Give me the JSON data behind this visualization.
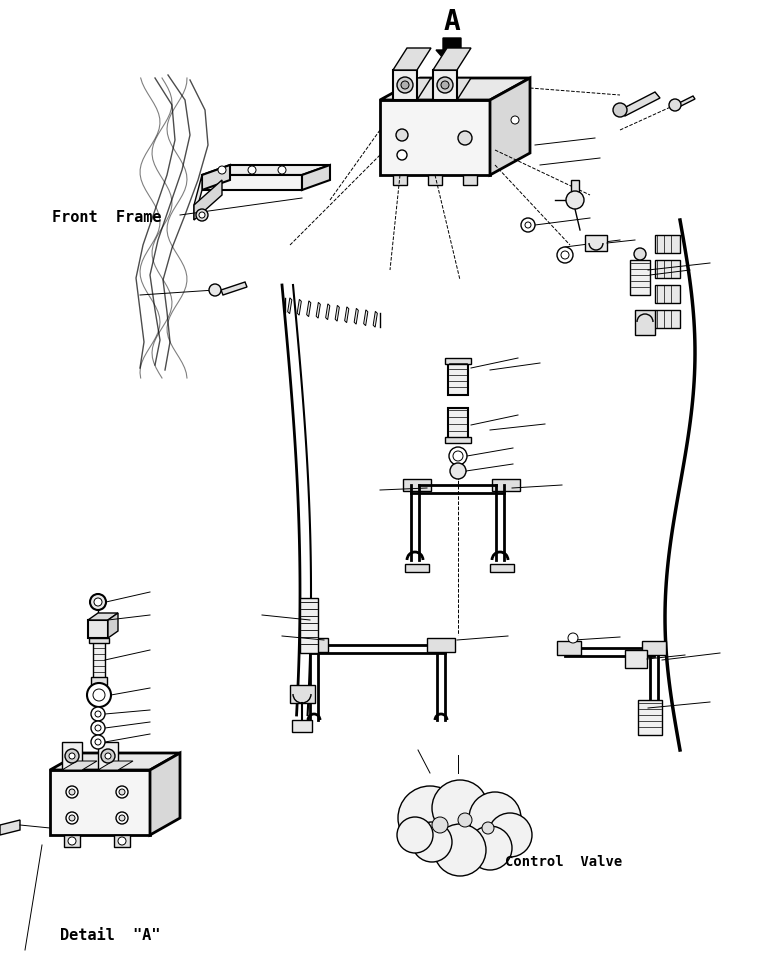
{
  "background_color": "#ffffff",
  "line_color": "#000000",
  "labels": {
    "front_frame": "Front  Frame",
    "control_valve": "Control  Valve",
    "detail_a": "Detail  \"A\""
  },
  "fig_width": 7.82,
  "fig_height": 9.59,
  "dpi": 100
}
